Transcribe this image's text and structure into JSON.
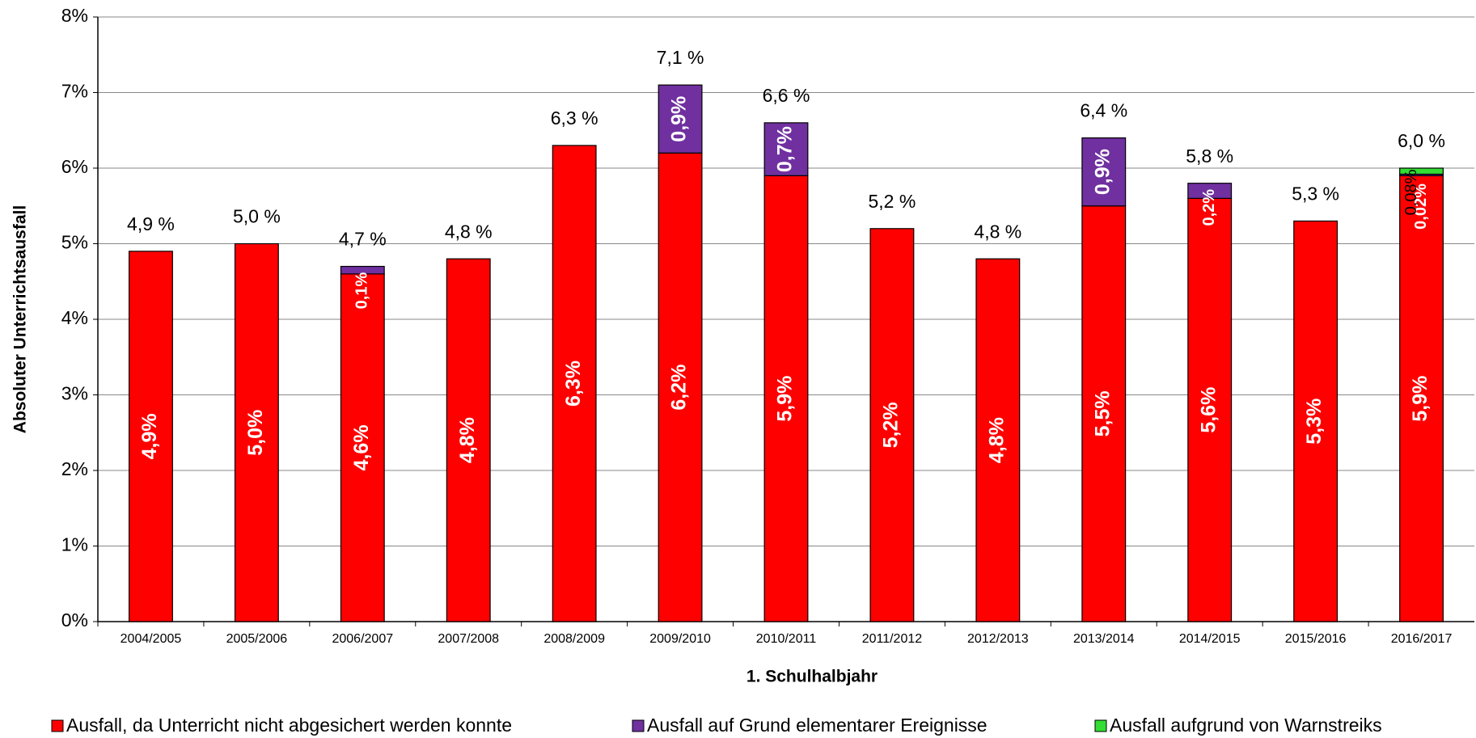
{
  "chart_data": {
    "type": "bar",
    "stacked": true,
    "x_label": "1. Schulhalbjahr",
    "y_label": "Absoluter Unterrichtsausfall",
    "categories": [
      "2004/2005",
      "2005/2006",
      "2006/2007",
      "2007/2008",
      "2008/2009",
      "2009/2010",
      "2010/2011",
      "2011/2012",
      "2012/2013",
      "2013/2014",
      "2014/2015",
      "2015/2016",
      "2016/2017"
    ],
    "series": [
      {
        "name": "Ausfall, da Unterricht nicht abgesichert werden konnte",
        "color": "#ff0000",
        "values": [
          4.9,
          5.0,
          4.6,
          4.8,
          6.3,
          6.2,
          5.9,
          5.2,
          4.8,
          5.5,
          5.6,
          5.3,
          5.9
        ],
        "value_labels": [
          "4,9%",
          "5,0%",
          "4,6%",
          "4,8%",
          "6,3%",
          "6,2%",
          "5,9%",
          "5,2%",
          "4,8%",
          "5,5%",
          "5,6%",
          "5,3%",
          "5,9%"
        ]
      },
      {
        "name": "Ausfall auf Grund elementarer Ereignisse",
        "color": "#7030a0",
        "values": [
          null,
          null,
          0.1,
          null,
          null,
          0.9,
          0.7,
          null,
          null,
          0.9,
          0.2,
          null,
          0.02
        ],
        "value_labels": [
          null,
          null,
          "0,1%",
          null,
          null,
          "0,9%",
          "0,7%",
          null,
          null,
          "0,9%",
          "0,2%",
          null,
          "0,02%"
        ]
      },
      {
        "name": "Ausfall aufgrund von Warnstreiks",
        "color": "#33dd33",
        "values": [
          null,
          null,
          null,
          null,
          null,
          null,
          null,
          null,
          null,
          null,
          null,
          null,
          0.08
        ],
        "value_labels": [
          null,
          null,
          null,
          null,
          null,
          null,
          null,
          null,
          null,
          null,
          null,
          null,
          "0,08%"
        ]
      }
    ],
    "totals": [
      4.9,
      5.0,
      4.7,
      4.8,
      6.3,
      7.1,
      6.6,
      5.2,
      4.8,
      6.4,
      5.8,
      5.3,
      6.0
    ],
    "total_labels": [
      "4,9 %",
      "5,0 %",
      "4,7 %",
      "4,8 %",
      "6,3 %",
      "7,1 %",
      "6,6 %",
      "5,2 %",
      "4,8 %",
      "6,4 %",
      "5,8 %",
      "5,3 %",
      "6,0 %"
    ],
    "ylim": [
      0,
      8
    ],
    "yticks": [
      {
        "value": 0,
        "label": "0%"
      },
      {
        "value": 1,
        "label": "1%"
      },
      {
        "value": 2,
        "label": "2%"
      },
      {
        "value": 3,
        "label": "3%"
      },
      {
        "value": 4,
        "label": "4%"
      },
      {
        "value": 5,
        "label": "5%"
      },
      {
        "value": 6,
        "label": "6%"
      },
      {
        "value": 7,
        "label": "7%"
      },
      {
        "value": 8,
        "label": "8%"
      }
    ],
    "grid": true,
    "legend": "bottom"
  }
}
